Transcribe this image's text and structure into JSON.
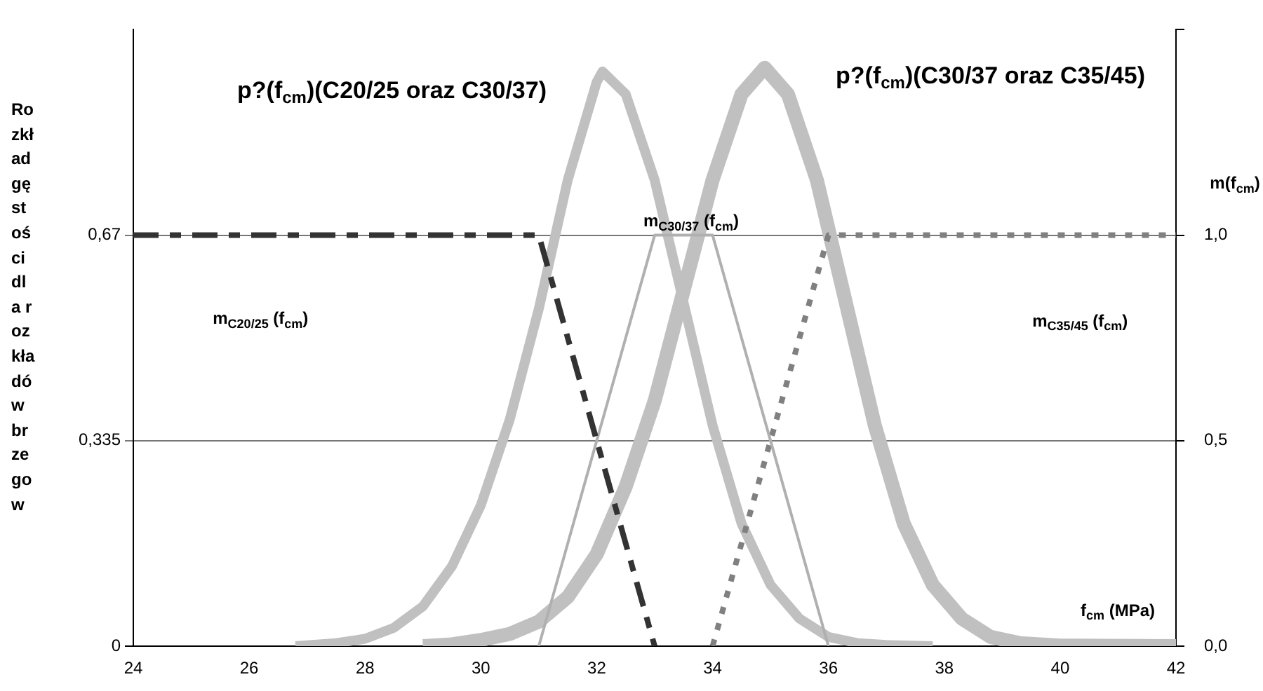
{
  "chart_data": {
    "type": "line",
    "xlabel": "f$_{cm}$ (MPa)",
    "ylabel": "Rozkład gęstości dla rozkładów brzegow",
    "y2label": "m(f$_{cm}$)",
    "xlim": [
      24,
      42
    ],
    "xticks": [
      24,
      26,
      28,
      30,
      32,
      34,
      36,
      38,
      40,
      42
    ],
    "ylim": [
      0,
      1.005
    ],
    "yticks": [
      0,
      {
        "value": 0.335,
        "label": "0,335"
      },
      {
        "value": 0.67,
        "label": "0,67"
      }
    ],
    "y2lim": [
      0,
      1.5
    ],
    "y2ticks": [
      {
        "value": 0,
        "label": "0,0"
      },
      {
        "value": 0.5,
        "label": "0,5"
      },
      {
        "value": 1.0,
        "label": "1,0"
      },
      {
        "value": 1.5,
        "label": null
      }
    ],
    "grid": "y",
    "legend": false,
    "marker": "none",
    "series": [
      {
        "color": "#c0c0c0",
        "line_style": "solid",
        "x": [
          26.8,
          27.5,
          28,
          28.5,
          29,
          29.5,
          30,
          30.5,
          31,
          31.5,
          32,
          32.1,
          32.5,
          33,
          33.5,
          34,
          34.5,
          35,
          35.5,
          36,
          36.5,
          37,
          37.8
        ],
        "values": [
          0,
          0.005,
          0.012,
          0.03,
          0.065,
          0.13,
          0.23,
          0.37,
          0.55,
          0.76,
          0.92,
          0.937,
          0.9,
          0.76,
          0.56,
          0.36,
          0.2,
          0.1,
          0.045,
          0.015,
          0.005,
          0.002,
          0
        ]
      },
      {
        "color": "#c0c0c0",
        "line_style": "solid",
        "x": [
          29,
          29.5,
          30,
          30.5,
          31,
          31.5,
          32,
          32.5,
          33,
          33.5,
          34,
          34.5,
          34.9,
          35.3,
          35.8,
          36.3,
          36.8,
          37.3,
          37.8,
          38.3,
          38.8,
          39.3,
          40,
          42
        ],
        "values": [
          0,
          0.003,
          0.01,
          0.02,
          0.04,
          0.08,
          0.15,
          0.26,
          0.4,
          0.58,
          0.76,
          0.9,
          0.943,
          0.9,
          0.76,
          0.56,
          0.36,
          0.2,
          0.1,
          0.045,
          0.015,
          0.005,
          0.001,
          0
        ]
      },
      {
        "color": "#333333",
        "line_style": "dashed",
        "axis": "y2",
        "x": [
          24,
          31,
          33
        ],
        "values": [
          1,
          1,
          0
        ]
      },
      {
        "color": "#b0b0b0",
        "line_style": "solid",
        "axis": "y2",
        "x": [
          31,
          33,
          34,
          36
        ],
        "values": [
          0,
          1,
          1,
          0
        ]
      },
      {
        "color": "#808080",
        "line_style": "dotted",
        "axis": "y2",
        "x": [
          34,
          36,
          42
        ],
        "values": [
          0,
          1,
          1
        ]
      }
    ],
    "annotations": [
      "p?(f$_{cm}$)(C20/25 oraz C30/37)",
      "p?(f$_{cm}$)(C30/37 oraz C35/45)",
      "m$_{C20/25}$ (f$_{cm}$)",
      {
        "text": "m$_{C30/37}$ (f$_{cm}$)",
        "x": 33.63,
        "y": 0.692
      },
      "m$_{C35/45}$ (f$_{cm}$)"
    ]
  }
}
